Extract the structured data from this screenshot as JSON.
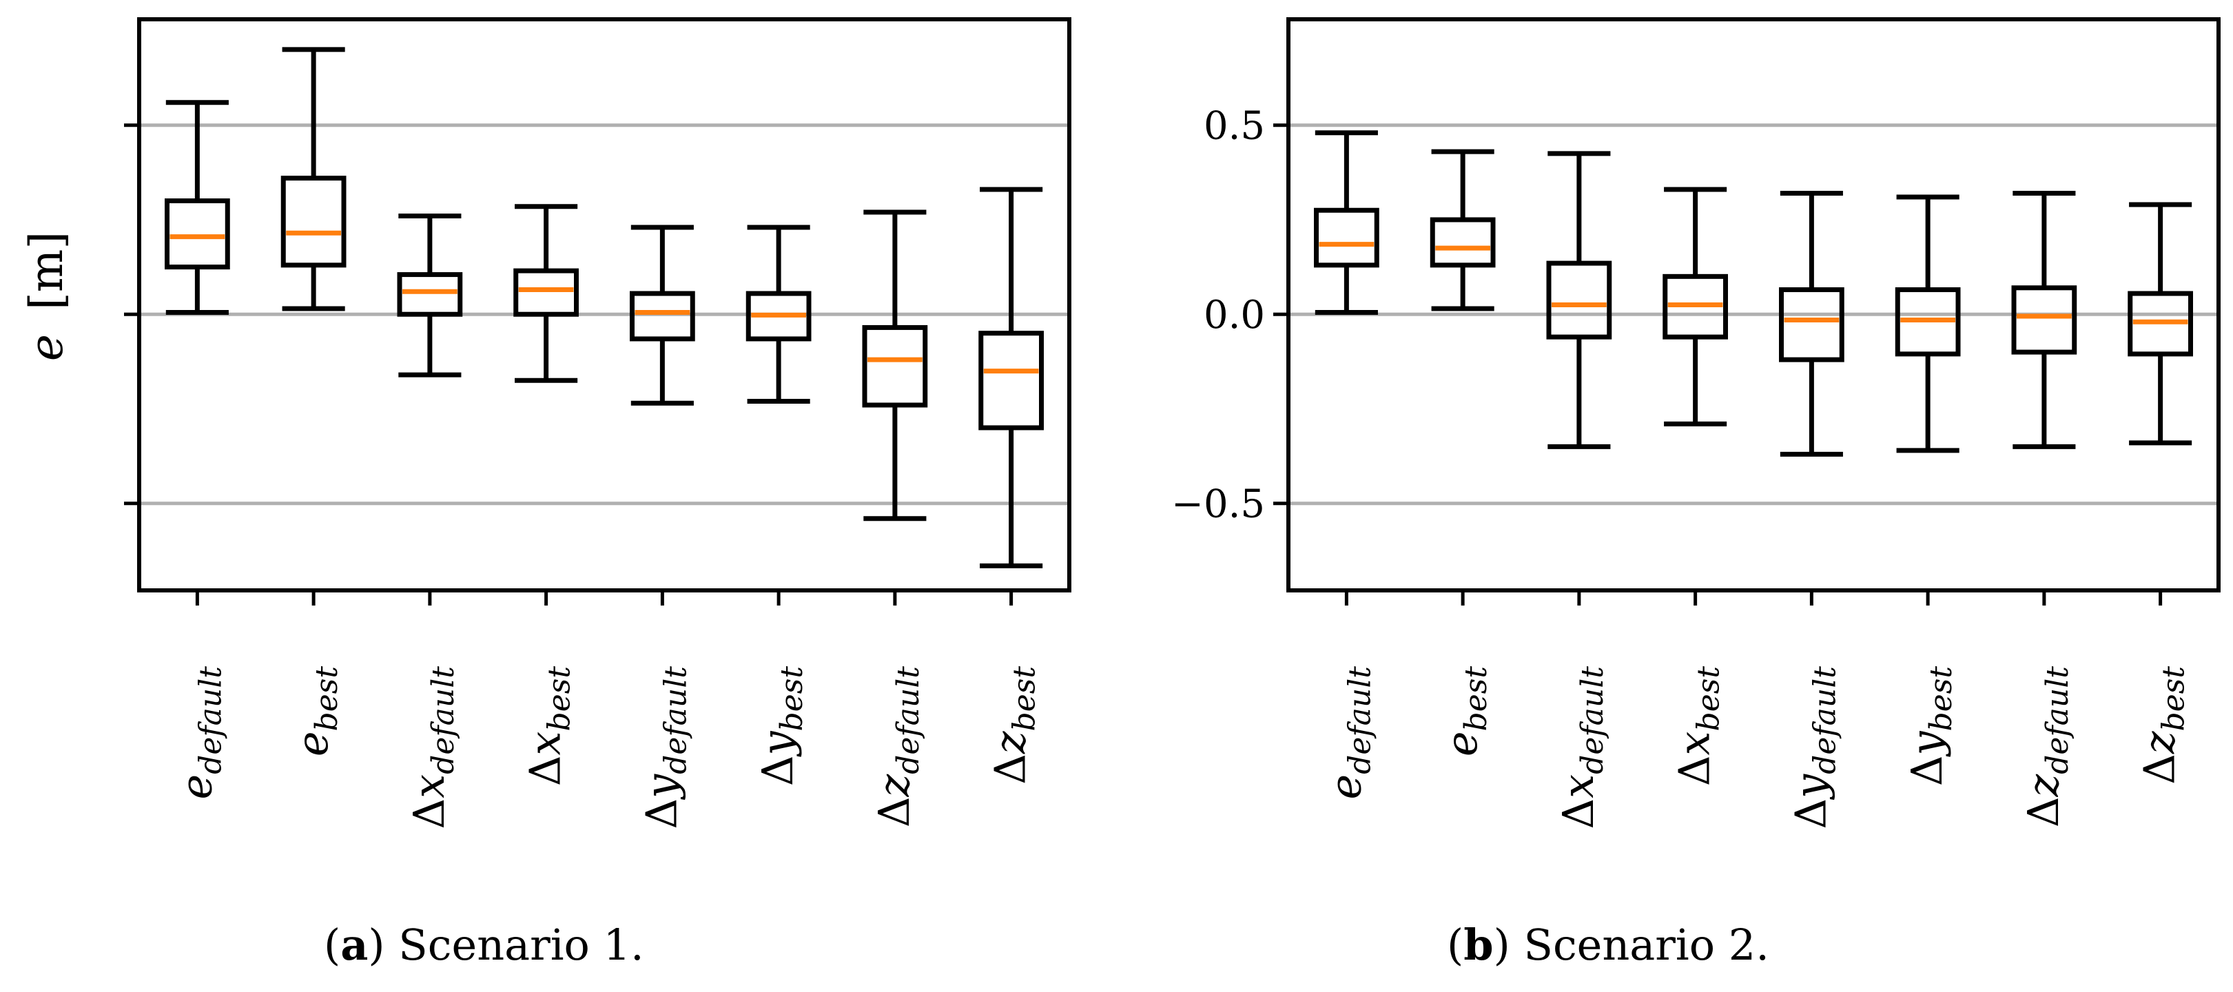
{
  "figure": {
    "ylabel_main": "e",
    "ylabel_unit": "[m]",
    "captions": [
      {
        "letter": "a",
        "open": "(",
        "close": ")",
        "text": " Scenario 1."
      },
      {
        "letter": "b",
        "open": "(",
        "close": ")",
        "text": " Scenario 2."
      }
    ]
  },
  "colors": {
    "median": "#ff7f0e",
    "box": "#000000",
    "grid": "#b0b0b0"
  },
  "chart_data": [
    {
      "type": "boxplot",
      "title": "Scenario 1.",
      "ylabel": "e [m]",
      "ylim": [
        -0.73,
        0.78
      ],
      "yticks": [
        -0.5,
        0.0,
        0.5
      ],
      "show_ytick_labels": false,
      "grid": "horizontal",
      "categories": [
        {
          "base": "e",
          "sub": "default"
        },
        {
          "base": "e",
          "sub": "best"
        },
        {
          "base": "Δx",
          "sub": "default"
        },
        {
          "base": "Δx",
          "sub": "best"
        },
        {
          "base": "Δy",
          "sub": "default"
        },
        {
          "base": "Δy",
          "sub": "best"
        },
        {
          "base": "Δz",
          "sub": "default"
        },
        {
          "base": "Δz",
          "sub": "best"
        }
      ],
      "boxes": [
        {
          "whislo": 0.005,
          "q1": 0.125,
          "med": 0.205,
          "q3": 0.3,
          "whishi": 0.56
        },
        {
          "whislo": 0.015,
          "q1": 0.13,
          "med": 0.215,
          "q3": 0.36,
          "whishi": 0.7
        },
        {
          "whislo": -0.16,
          "q1": 0.0,
          "med": 0.06,
          "q3": 0.105,
          "whishi": 0.26
        },
        {
          "whislo": -0.175,
          "q1": 0.0,
          "med": 0.065,
          "q3": 0.115,
          "whishi": 0.285
        },
        {
          "whislo": -0.235,
          "q1": -0.065,
          "med": 0.005,
          "q3": 0.055,
          "whishi": 0.23
        },
        {
          "whislo": -0.23,
          "q1": -0.065,
          "med": -0.002,
          "q3": 0.055,
          "whishi": 0.23
        },
        {
          "whislo": -0.54,
          "q1": -0.24,
          "med": -0.12,
          "q3": -0.035,
          "whishi": 0.27
        },
        {
          "whislo": -0.665,
          "q1": -0.3,
          "med": -0.15,
          "q3": -0.05,
          "whishi": 0.33
        }
      ]
    },
    {
      "type": "boxplot",
      "title": "Scenario 2.",
      "ylabel": "",
      "ylim": [
        -0.73,
        0.78
      ],
      "yticks": [
        -0.5,
        0.0,
        0.5
      ],
      "ytick_labels": [
        "−0.5",
        "0.0",
        "0.5"
      ],
      "show_ytick_labels": true,
      "grid": "horizontal",
      "categories": [
        {
          "base": "e",
          "sub": "default"
        },
        {
          "base": "e",
          "sub": "best"
        },
        {
          "base": "Δx",
          "sub": "default"
        },
        {
          "base": "Δx",
          "sub": "best"
        },
        {
          "base": "Δy",
          "sub": "default"
        },
        {
          "base": "Δy",
          "sub": "best"
        },
        {
          "base": "Δz",
          "sub": "default"
        },
        {
          "base": "Δz",
          "sub": "best"
        }
      ],
      "boxes": [
        {
          "whislo": 0.005,
          "q1": 0.13,
          "med": 0.185,
          "q3": 0.275,
          "whishi": 0.48
        },
        {
          "whislo": 0.015,
          "q1": 0.13,
          "med": 0.175,
          "q3": 0.25,
          "whishi": 0.43
        },
        {
          "whislo": -0.35,
          "q1": -0.06,
          "med": 0.025,
          "q3": 0.135,
          "whishi": 0.425
        },
        {
          "whislo": -0.29,
          "q1": -0.06,
          "med": 0.025,
          "q3": 0.1,
          "whishi": 0.33
        },
        {
          "whislo": -0.37,
          "q1": -0.12,
          "med": -0.015,
          "q3": 0.065,
          "whishi": 0.32
        },
        {
          "whislo": -0.36,
          "q1": -0.105,
          "med": -0.015,
          "q3": 0.065,
          "whishi": 0.31
        },
        {
          "whislo": -0.35,
          "q1": -0.1,
          "med": -0.005,
          "q3": 0.07,
          "whishi": 0.32
        },
        {
          "whislo": -0.34,
          "q1": -0.105,
          "med": -0.02,
          "q3": 0.055,
          "whishi": 0.29
        }
      ]
    }
  ]
}
